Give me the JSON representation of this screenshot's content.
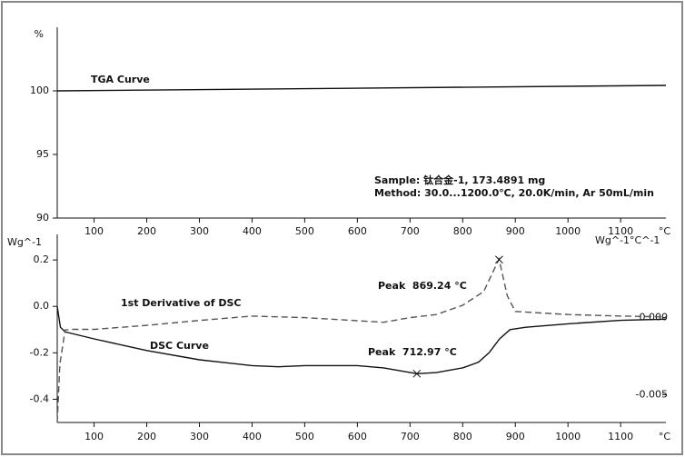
{
  "chart_data": [
    {
      "type": "line",
      "y_label": "%",
      "x_unit": "°C",
      "xlim": [
        30,
        1186
      ],
      "xticks": [
        100,
        200,
        300,
        400,
        500,
        600,
        700,
        800,
        900,
        1000,
        1100
      ],
      "ylim": [
        90,
        105
      ],
      "yticks": [
        90,
        95,
        100
      ],
      "annotations": [
        "Sample: 钛合金-1, 173.4891 mg",
        "Method: 30.0...1200.0℃, 20.0K/min, Ar 50mL/min"
      ],
      "series": [
        {
          "name": "TGA Curve",
          "color": "#111111",
          "x": [
            30,
            1186
          ],
          "values": [
            100,
            100.43
          ]
        }
      ]
    },
    {
      "type": "line",
      "y_label": "Wg^-1",
      "y2_label": "Wg^-1°C^-1",
      "x_unit": "°C",
      "xlim": [
        30,
        1186
      ],
      "xticks": [
        100,
        200,
        300,
        400,
        500,
        600,
        700,
        800,
        900,
        1000,
        1100
      ],
      "ylim": [
        -0.5,
        0.31
      ],
      "yticks": [
        0.2,
        {
          "value": 0,
          "label": "0.0"
        },
        -0.2,
        -0.4
      ],
      "y2lim": [
        -0.0068,
        0.0054
      ],
      "y2ticks": [
        {
          "value": 0,
          "label": "0.000"
        },
        -0.005
      ],
      "peaks": [
        {
          "label": "Peak  869.24 °C",
          "x": 869.24,
          "series": 1
        },
        {
          "label": "Peak  712.97 °C",
          "x": 712.97,
          "series": 0
        }
      ],
      "series": [
        {
          "name": "DSC Curve",
          "color": "#111111",
          "dash": false,
          "x": [
            30,
            36,
            45,
            100,
            200,
            300,
            400,
            450,
            500,
            550,
            600,
            650,
            713,
            750,
            800,
            830,
            850,
            870,
            890,
            920,
            1000,
            1100,
            1186
          ],
          "values": [
            0.0,
            -0.09,
            -0.11,
            -0.14,
            -0.19,
            -0.23,
            -0.255,
            -0.26,
            -0.255,
            -0.255,
            -0.255,
            -0.265,
            -0.29,
            -0.285,
            -0.265,
            -0.24,
            -0.2,
            -0.14,
            -0.1,
            -0.09,
            -0.075,
            -0.06,
            -0.055
          ]
        },
        {
          "name": "1st Derivative of DSC",
          "color": "#555555",
          "dash": true,
          "axis": "y2",
          "x": [
            30,
            35,
            45,
            60,
            100,
            200,
            300,
            400,
            500,
            600,
            650,
            700,
            750,
            800,
            840,
            869,
            885,
            900,
            1000,
            1100,
            1186
          ],
          "values": [
            -0.0068,
            -0.003,
            -0.0008,
            -0.00076,
            -0.00076,
            -0.0005,
            -0.00018,
            0.0001,
            0.0,
            -0.0002,
            -0.0003,
            0.0,
            0.0002,
            0.0008,
            0.0017,
            0.0038,
            0.0014,
            0.0004,
            0.0002,
            0.0001,
            5e-05
          ]
        }
      ]
    }
  ]
}
